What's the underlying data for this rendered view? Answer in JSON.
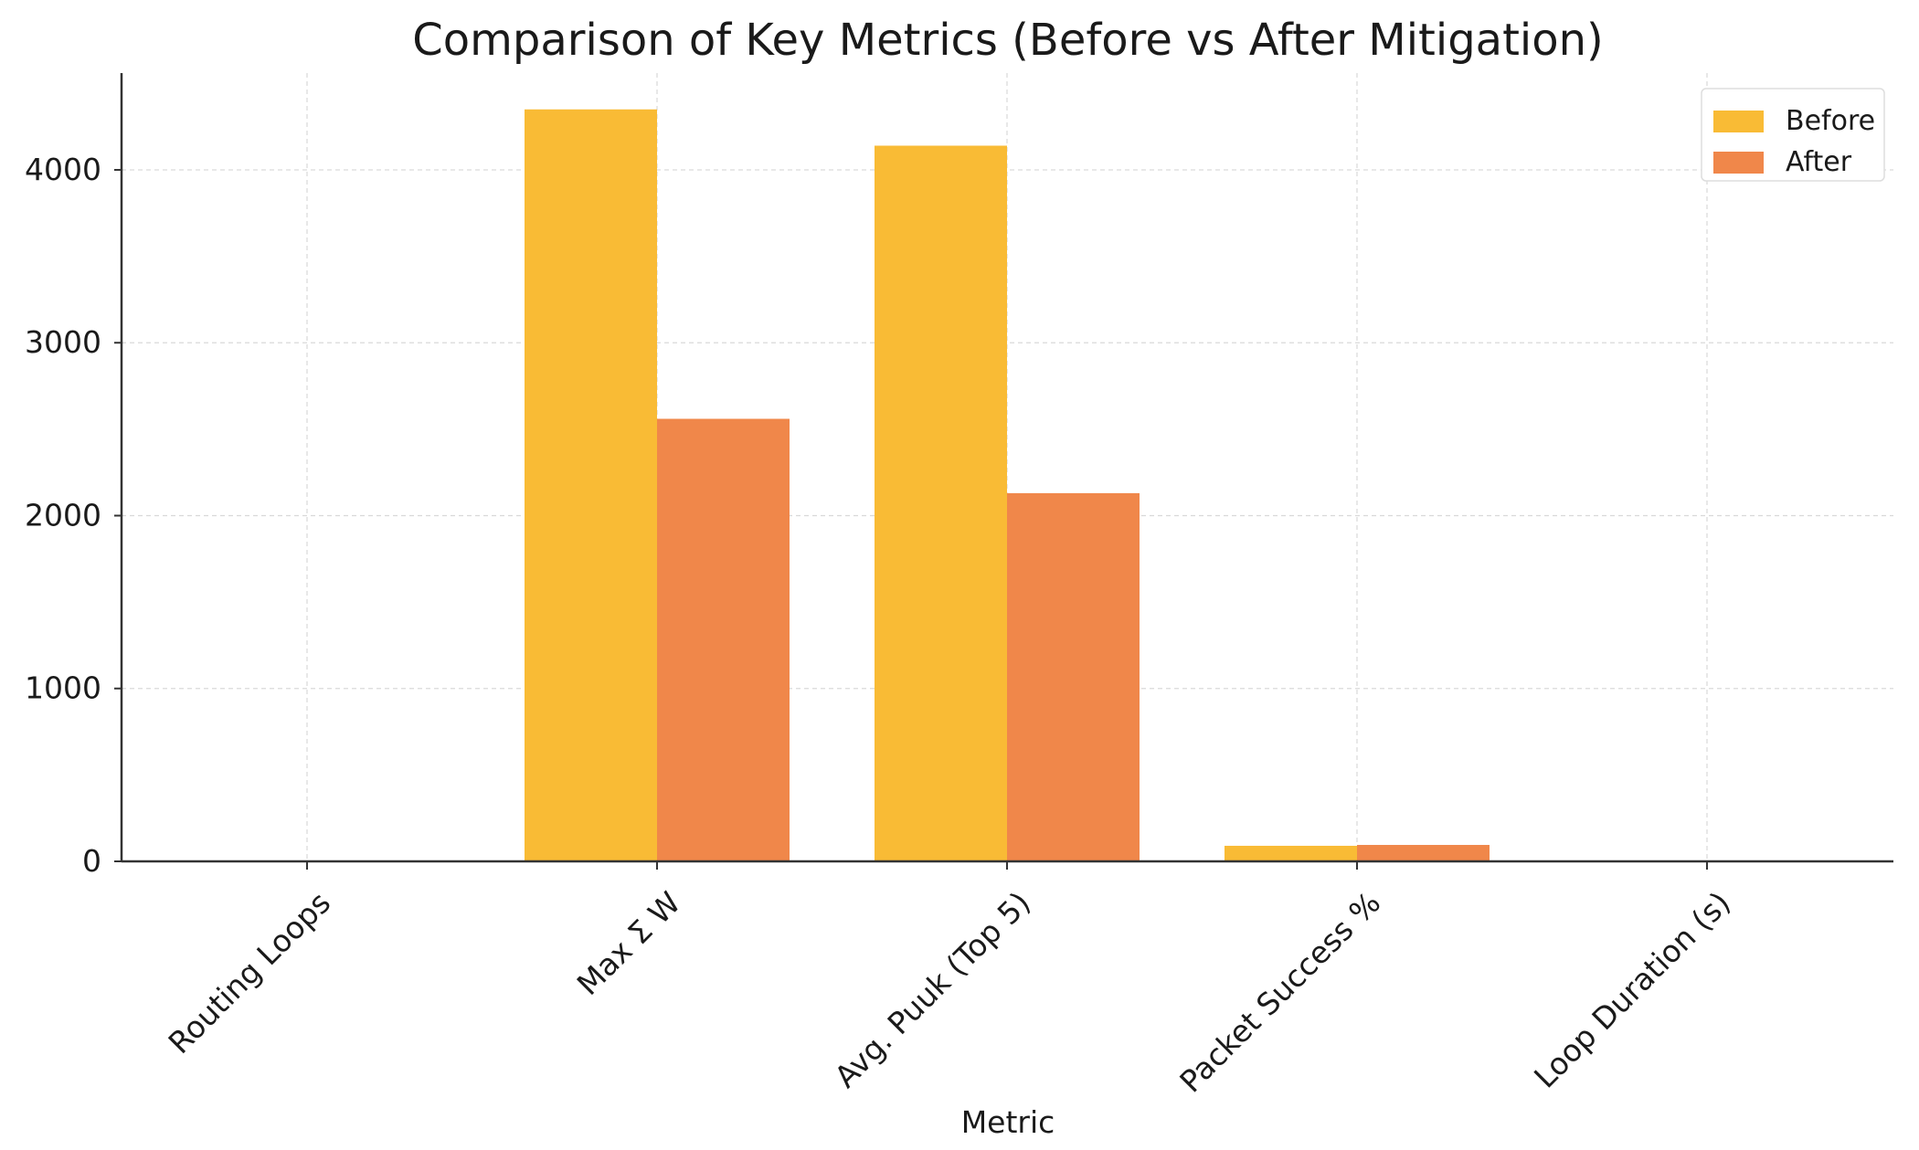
{
  "chart_data": {
    "type": "bar",
    "title": "Comparison of Key Metrics (Before vs After Mitigation)",
    "xlabel": "Metric",
    "ylabel": "",
    "categories": [
      "Routing Loops",
      "Max Σ W",
      "Avg. Puuk (Top 5)",
      "Packet Success %",
      "Loop Duration (s)"
    ],
    "series": [
      {
        "name": "Before",
        "color": "#F9BB35",
        "values": [
          0,
          4350,
          4140,
          90,
          0
        ]
      },
      {
        "name": "After",
        "color": "#F0874A",
        "values": [
          0,
          2560,
          2130,
          95,
          0
        ]
      }
    ],
    "ylim": [
      0,
      4560
    ],
    "yticks": [
      0,
      1000,
      2000,
      3000,
      4000
    ],
    "grid": true,
    "legend_position": "top-right"
  }
}
